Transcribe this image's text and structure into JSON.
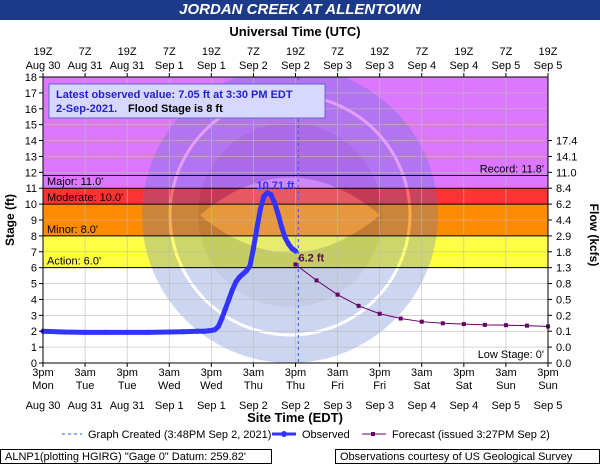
{
  "title": "JORDAN CREEK AT ALLENTOWN",
  "top_axis_label": "Universal Time (UTC)",
  "top_ticks": [
    [
      "19Z",
      "Aug 30"
    ],
    [
      "7Z",
      "Aug 31"
    ],
    [
      "19Z",
      "Aug 31"
    ],
    [
      "7Z",
      "Sep 1"
    ],
    [
      "19Z",
      "Sep 1"
    ],
    [
      "7Z",
      "Sep 2"
    ],
    [
      "19Z",
      "Sep 2"
    ],
    [
      "7Z",
      "Sep 3"
    ],
    [
      "19Z",
      "Sep 3"
    ],
    [
      "7Z",
      "Sep 4"
    ],
    [
      "19Z",
      "Sep 4"
    ],
    [
      "7Z",
      "Sep 5"
    ],
    [
      "19Z",
      "Sep 5"
    ]
  ],
  "bottom_ticks": [
    [
      "3pm",
      "Mon",
      "Aug 30"
    ],
    [
      "3am",
      "Tue",
      "Aug 31"
    ],
    [
      "3pm",
      "Tue",
      "Aug 31"
    ],
    [
      "3am",
      "Wed",
      "Sep 1"
    ],
    [
      "3pm",
      "Wed",
      "Sep 1"
    ],
    [
      "3am",
      "Thu",
      "Sep 2"
    ],
    [
      "3pm",
      "Thu",
      "Sep 2"
    ],
    [
      "3am",
      "Fri",
      "Sep 3"
    ],
    [
      "3pm",
      "Fri",
      "Sep 3"
    ],
    [
      "3am",
      "Sat",
      "Sep 4"
    ],
    [
      "3pm",
      "Sat",
      "Sep 4"
    ],
    [
      "3am",
      "Sun",
      "Sep 5"
    ],
    [
      "3pm",
      "Sun",
      "Sep 5"
    ]
  ],
  "xlabel": "Site Time (EDT)",
  "ylabel": "Stage (ft)",
  "y2label": "Flow (kcfs)",
  "y_ticks": [
    0,
    1,
    2,
    3,
    4,
    5,
    6,
    7,
    8,
    9,
    10,
    11,
    12,
    13,
    14,
    15,
    16,
    17,
    18
  ],
  "flow_ticks": [
    {
      "stage": 0,
      "label": "0.0"
    },
    {
      "stage": 1,
      "label": "0.0"
    },
    {
      "stage": 2,
      "label": "0.1"
    },
    {
      "stage": 3,
      "label": "0.2"
    },
    {
      "stage": 4,
      "label": "0.5"
    },
    {
      "stage": 5,
      "label": "0.8"
    },
    {
      "stage": 6,
      "label": "1.3"
    },
    {
      "stage": 7,
      "label": "1.8"
    },
    {
      "stage": 8,
      "label": "2.9"
    },
    {
      "stage": 9,
      "label": "4.4"
    },
    {
      "stage": 10,
      "label": "6.2"
    },
    {
      "stage": 11,
      "label": "8.4"
    },
    {
      "stage": 12,
      "label": "11.0"
    },
    {
      "stage": 13,
      "label": "14.1"
    },
    {
      "stage": 14,
      "label": "17.4"
    }
  ],
  "info_box": {
    "line1": "Latest observed value: 7.05 ft at 3:30 PM EDT",
    "line2_date": "2-Sep-2021.",
    "line2_flood": "Flood Stage is 8 ft"
  },
  "thresholds": {
    "record": {
      "label": "Record: 11.8'",
      "value": 11.8
    },
    "major": {
      "label": "Major: 11.0'",
      "value": 11.0,
      "color": "#cc33ff"
    },
    "moderate": {
      "label": "Moderate: 10.0'",
      "value": 10.0,
      "color": "#ff0000"
    },
    "minor": {
      "label": "Minor: 8.0'",
      "value": 8.0,
      "color": "#ff9900"
    },
    "action": {
      "label": "Action: 6.0'",
      "value": 6.0,
      "color": "#ffff00"
    },
    "low": {
      "label": "Low Stage: 0'",
      "value": 0
    }
  },
  "band_colors": {
    "above_major": "#dd77ff",
    "major": "#ff3333",
    "moderate": "#ff8c00",
    "minor": "#ffff44"
  },
  "chart_data": {
    "type": "line",
    "x_unit": "hours after 3pm EDT Mon Aug 30",
    "xlim": [
      0,
      144
    ],
    "ylim": [
      0,
      18
    ],
    "series": [
      {
        "name": "Observed",
        "color": "#3333ff",
        "x": [
          0,
          6,
          12,
          18,
          24,
          30,
          36,
          40,
          44,
          46,
          47,
          48,
          49,
          50,
          51,
          52,
          53,
          54,
          55,
          56,
          57,
          58,
          59,
          60,
          61,
          62,
          63,
          64,
          65,
          66,
          67,
          68,
          69,
          70,
          71,
          72
        ],
        "y": [
          2.0,
          1.95,
          1.93,
          1.93,
          1.93,
          1.93,
          1.95,
          1.97,
          2.0,
          2.0,
          2.02,
          2.05,
          2.1,
          2.3,
          2.8,
          3.4,
          4.0,
          4.6,
          5.1,
          5.4,
          5.6,
          5.8,
          6.1,
          7.2,
          8.5,
          9.7,
          10.5,
          10.71,
          10.6,
          10.1,
          9.4,
          8.6,
          7.9,
          7.5,
          7.2,
          7.05
        ]
      },
      {
        "name": "Forecast",
        "color": "#660066",
        "x": [
          72,
          78,
          84,
          90,
          96,
          102,
          108,
          114,
          120,
          126,
          132,
          138,
          144
        ],
        "y": [
          6.2,
          5.2,
          4.3,
          3.6,
          3.1,
          2.8,
          2.6,
          2.5,
          2.45,
          2.4,
          2.38,
          2.35,
          2.3
        ]
      }
    ],
    "annotations": [
      {
        "text": "10.71 ft",
        "x": 64,
        "y": 10.71
      },
      {
        "text": "6.2 ft",
        "x": 72,
        "y": 6.2
      }
    ],
    "graph_created_x": 72.8
  },
  "legend": {
    "created": "Graph Created (3:48PM Sep 2, 2021)",
    "observed": "Observed",
    "forecast": "Forecast (issued 3:27PM Sep 2)"
  },
  "footer": {
    "left": "ALNP1(plotting HGIRG) \"Gage 0\" Datum: 259.82'",
    "right": "Observations courtesy of US Geological Survey"
  }
}
